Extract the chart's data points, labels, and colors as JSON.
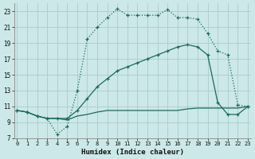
{
  "xlabel": "Humidex (Indice chaleur)",
  "bg_color": "#cce8e8",
  "grid_color": "#aacccc",
  "line_color": "#1a6b5a",
  "xlim": [
    0,
    23
  ],
  "ylim": [
    7,
    24
  ],
  "xticks": [
    0,
    1,
    2,
    3,
    4,
    5,
    6,
    7,
    8,
    9,
    10,
    11,
    12,
    13,
    14,
    15,
    16,
    17,
    18,
    19,
    20,
    21,
    22,
    23
  ],
  "yticks": [
    7,
    9,
    11,
    13,
    15,
    17,
    19,
    21,
    23
  ],
  "s1_x": [
    0,
    1,
    2,
    3,
    4,
    5,
    6,
    7,
    8,
    9,
    10,
    11,
    12,
    13,
    14,
    15,
    16,
    17,
    18,
    19,
    20,
    21,
    22,
    23
  ],
  "s1_y": [
    10.5,
    10.3,
    9.8,
    9.5,
    7.5,
    8.5,
    13.0,
    19.5,
    21.0,
    22.2,
    23.3,
    22.5,
    22.5,
    22.5,
    22.5,
    23.2,
    22.2,
    22.2,
    22.0,
    20.2,
    18.0,
    17.5,
    11.2,
    11.0
  ],
  "s2_x": [
    0,
    1,
    2,
    3,
    4,
    5,
    6,
    7,
    8,
    9,
    10,
    11,
    12,
    13,
    14,
    15,
    16,
    17,
    18,
    19,
    20,
    21,
    22,
    23
  ],
  "s2_y": [
    10.5,
    10.3,
    9.8,
    9.5,
    9.5,
    9.5,
    10.5,
    12.0,
    13.5,
    14.5,
    15.5,
    16.0,
    16.5,
    17.0,
    17.5,
    18.0,
    18.5,
    18.8,
    18.5,
    17.5,
    11.5,
    10.0,
    10.0,
    11.0
  ],
  "s3_x": [
    0,
    1,
    2,
    3,
    4,
    5,
    6,
    7,
    8,
    9,
    10,
    11,
    12,
    13,
    14,
    15,
    16,
    17,
    18,
    19,
    20,
    21,
    22,
    23
  ],
  "s3_y": [
    10.5,
    10.3,
    9.8,
    9.5,
    9.5,
    9.3,
    9.8,
    10.0,
    10.3,
    10.5,
    10.5,
    10.5,
    10.5,
    10.5,
    10.5,
    10.5,
    10.5,
    10.7,
    10.8,
    10.8,
    10.8,
    10.8,
    10.8,
    11.0
  ]
}
